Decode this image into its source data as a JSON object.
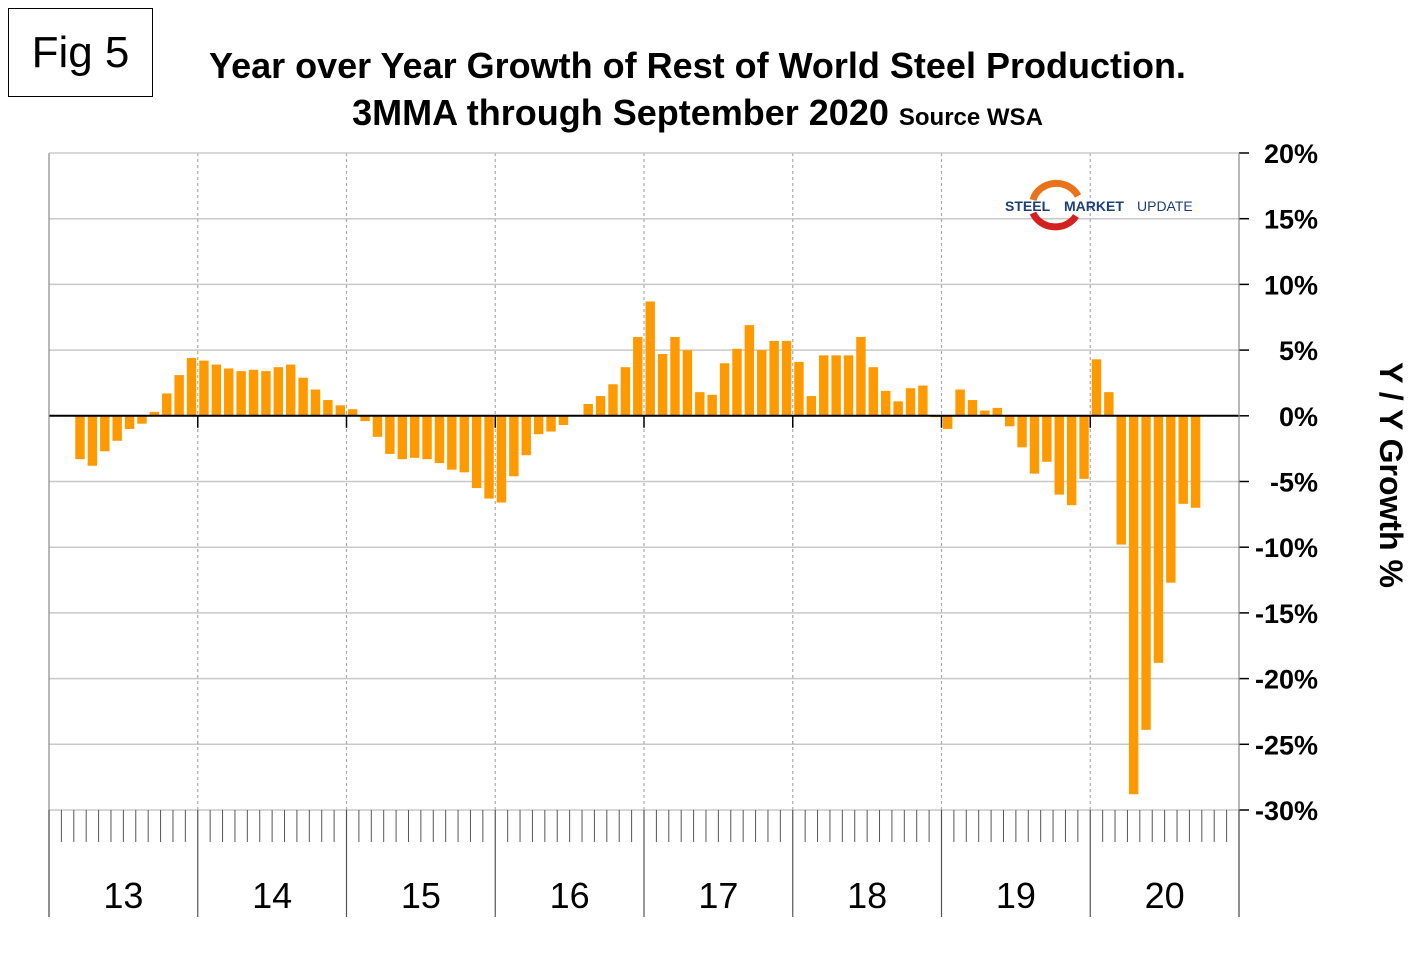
{
  "figure_label": "Fig 5",
  "chart_data": {
    "type": "bar",
    "title": "Year over Year Growth of Rest of World Steel Production.",
    "subtitle": "3MMA through September 2020",
    "source": "Source WSA",
    "ylabel": "Y / Y Growth %",
    "xlabel": "",
    "ylim": [
      -30,
      20
    ],
    "yticks": [
      "20%",
      "15%",
      "10%",
      "5%",
      "0%",
      "-5%",
      "-10%",
      "-15%",
      "-20%",
      "-25%",
      "-30%"
    ],
    "year_labels": [
      "13",
      "14",
      "15",
      "16",
      "17",
      "18",
      "19",
      "20"
    ],
    "grid": true,
    "bar_color": "#FF9900",
    "start_month": "2013-03",
    "end_month": "2020-09",
    "values": [
      -3.3,
      -3.8,
      -2.7,
      -1.9,
      -1.0,
      -0.6,
      0.3,
      1.7,
      3.1,
      4.4,
      4.2,
      3.9,
      3.6,
      3.4,
      3.5,
      3.4,
      3.7,
      3.9,
      2.9,
      2.0,
      1.2,
      0.8,
      0.5,
      -0.4,
      -1.6,
      -2.9,
      -3.3,
      -3.2,
      -3.3,
      -3.6,
      -4.1,
      -4.3,
      -5.5,
      -6.3,
      -6.6,
      -4.6,
      -3.0,
      -1.4,
      -1.2,
      -0.7,
      0.0,
      0.9,
      1.5,
      2.4,
      3.7,
      6.0,
      8.7,
      4.7,
      6.0,
      5.0,
      1.8,
      1.6,
      4.0,
      5.1,
      6.9,
      5.0,
      5.7,
      5.7,
      4.1,
      1.5,
      4.6,
      4.6,
      4.6,
      6.0,
      3.7,
      1.9,
      1.1,
      2.1,
      2.3,
      -0.1,
      -1.0,
      2.0,
      1.2,
      0.4,
      0.6,
      -0.8,
      -2.4,
      -4.4,
      -3.5,
      -6.0,
      -6.8,
      -4.8,
      4.3,
      1.8,
      -9.8,
      -28.8,
      -23.9,
      -18.8,
      -12.7,
      -6.7,
      -7.0
    ]
  },
  "logo": {
    "text_a": "STEEL",
    "text_b": "MARKET",
    "text_c": "UPDATE"
  }
}
